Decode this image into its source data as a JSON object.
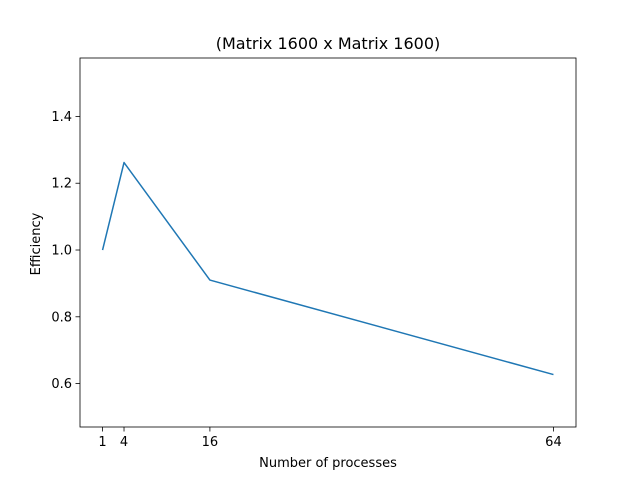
{
  "chart_data": {
    "type": "line",
    "title": "(Matrix 1600 x Matrix 1600)",
    "xlabel": "Number of processes",
    "ylabel": "Efficiency",
    "x": [
      1,
      4,
      16,
      64
    ],
    "series": [
      {
        "values": [
          1.0,
          1.262,
          0.91,
          0.627
        ],
        "color": "#1f77b4"
      }
    ],
    "xticks": [
      1,
      4,
      16,
      64
    ],
    "xtick_labels": [
      "1",
      "4",
      "16",
      "64"
    ],
    "yticks": [
      0.6,
      0.8,
      1.0,
      1.2,
      1.4
    ],
    "ytick_labels": [
      "0.6",
      "0.8",
      "1.0",
      "1.2",
      "1.4"
    ],
    "xlim": [
      -2.15,
      67.15
    ],
    "ylim": [
      0.47,
      1.575
    ],
    "grid": false,
    "legend": "none"
  }
}
